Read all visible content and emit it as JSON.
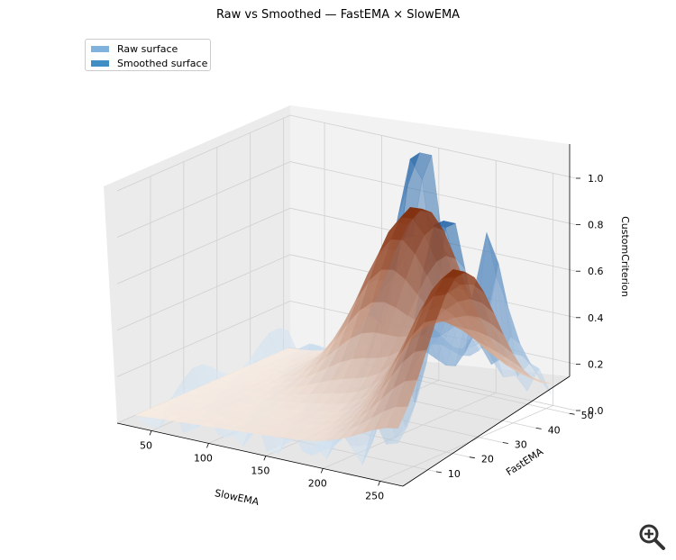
{
  "chart_data": {
    "type": "surface3d",
    "title": "Raw vs Smoothed — FastEMA × SlowEMA",
    "xlabel": "SlowEMA",
    "ylabel": "FastEMA",
    "zlabel": "CustomCriterion",
    "xlim": [
      20,
      270
    ],
    "ylim": [
      0,
      52
    ],
    "zlim": [
      0,
      1.0
    ],
    "x_ticks": [
      "50",
      "100",
      "150",
      "200",
      "250"
    ],
    "y_ticks": [
      "10",
      "20",
      "30",
      "40",
      "50"
    ],
    "z_ticks": [
      "0.0",
      "0.2",
      "0.4",
      "0.6",
      "0.8",
      "1.0"
    ],
    "legend_position": "top-left",
    "grid": true,
    "series": [
      {
        "name": "Raw surface",
        "colormap": "Blues",
        "alpha": 0.55,
        "legend_color": "#7fb2dc",
        "peaks": [
          {
            "slow": 148,
            "fast": 48,
            "value": 1.0
          },
          {
            "slow": 250,
            "fast": 18,
            "value": 1.0
          },
          {
            "slow": 235,
            "fast": 40,
            "value": 0.85
          }
        ]
      },
      {
        "name": "Smoothed surface",
        "colormap": "Oranges",
        "alpha": 0.85,
        "legend_color": "#3f8fc4",
        "peaks": [
          {
            "slow": 150,
            "fast": 45,
            "value": 0.72
          },
          {
            "slow": 260,
            "fast": 20,
            "value": 0.62
          }
        ]
      }
    ]
  },
  "toolbar": {
    "zoom_icon": "zoom-in-magnifier-icon"
  }
}
